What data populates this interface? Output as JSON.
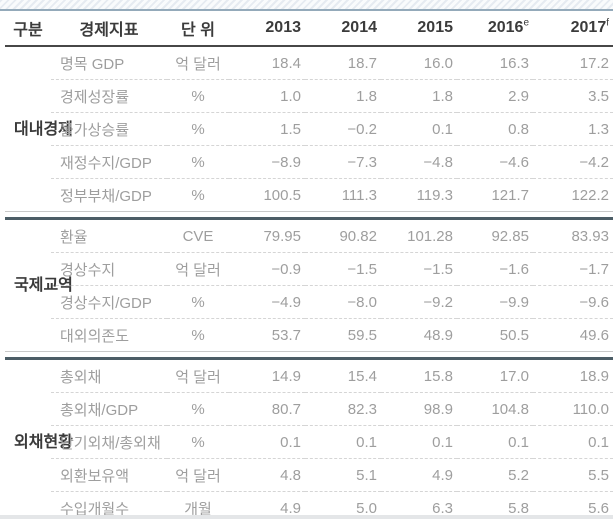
{
  "table": {
    "headers": {
      "category": "구분",
      "indicator": "경제지표",
      "unit": "단 위",
      "years": [
        "2013",
        "2014",
        "2015",
        "2016",
        "2017"
      ],
      "year_notes": [
        "",
        "",
        "",
        "e",
        "f"
      ]
    },
    "groups": [
      {
        "label": "대내경제",
        "rows": [
          {
            "indicator": "명목 GDP",
            "unit": "억 달러",
            "values": [
              "18.4",
              "18.7",
              "16.0",
              "16.3",
              "17.2"
            ]
          },
          {
            "indicator": "경제성장률",
            "unit": "%",
            "values": [
              "1.0",
              "1.8",
              "1.8",
              "2.9",
              "3.5"
            ]
          },
          {
            "indicator": "물가상승률",
            "unit": "%",
            "values": [
              "1.5",
              "−0.2",
              "0.1",
              "0.8",
              "1.3"
            ]
          },
          {
            "indicator": "재정수지/GDP",
            "unit": "%",
            "values": [
              "−8.9",
              "−7.3",
              "−4.8",
              "−4.6",
              "−4.2"
            ]
          },
          {
            "indicator": "정부부채/GDP",
            "unit": "%",
            "values": [
              "100.5",
              "111.3",
              "119.3",
              "121.7",
              "122.2"
            ]
          }
        ]
      },
      {
        "label": "국제교역",
        "rows": [
          {
            "indicator": "환율",
            "unit": "CVE",
            "values": [
              "79.95",
              "90.82",
              "101.28",
              "92.85",
              "83.93"
            ]
          },
          {
            "indicator": "경상수지",
            "unit": "억 달러",
            "values": [
              "−0.9",
              "−1.5",
              "−1.5",
              "−1.6",
              "−1.7"
            ]
          },
          {
            "indicator": "경상수지/GDP",
            "unit": "%",
            "values": [
              "−4.9",
              "−8.0",
              "−9.2",
              "−9.9",
              "−9.6"
            ]
          },
          {
            "indicator": "대외의존도",
            "unit": "%",
            "values": [
              "53.7",
              "59.5",
              "48.9",
              "50.5",
              "49.6"
            ]
          }
        ]
      },
      {
        "label": "외채현황",
        "rows": [
          {
            "indicator": "총외채",
            "unit": "억 달러",
            "values": [
              "14.9",
              "15.4",
              "15.8",
              "17.0",
              "18.9"
            ]
          },
          {
            "indicator": "총외채/GDP",
            "unit": "%",
            "values": [
              "80.7",
              "82.3",
              "98.9",
              "104.8",
              "110.0"
            ]
          },
          {
            "indicator": "단기외채/총외채",
            "unit": "%",
            "values": [
              "0.1",
              "0.1",
              "0.1",
              "0.1",
              "0.1"
            ]
          },
          {
            "indicator": "외환보유액",
            "unit": "억 달러",
            "values": [
              "4.8",
              "5.1",
              "4.9",
              "5.2",
              "5.5"
            ]
          },
          {
            "indicator": "수입개월수",
            "unit": "개월",
            "values": [
              "4.9",
              "5.0",
              "6.3",
              "5.8",
              "5.6"
            ]
          }
        ]
      }
    ]
  }
}
